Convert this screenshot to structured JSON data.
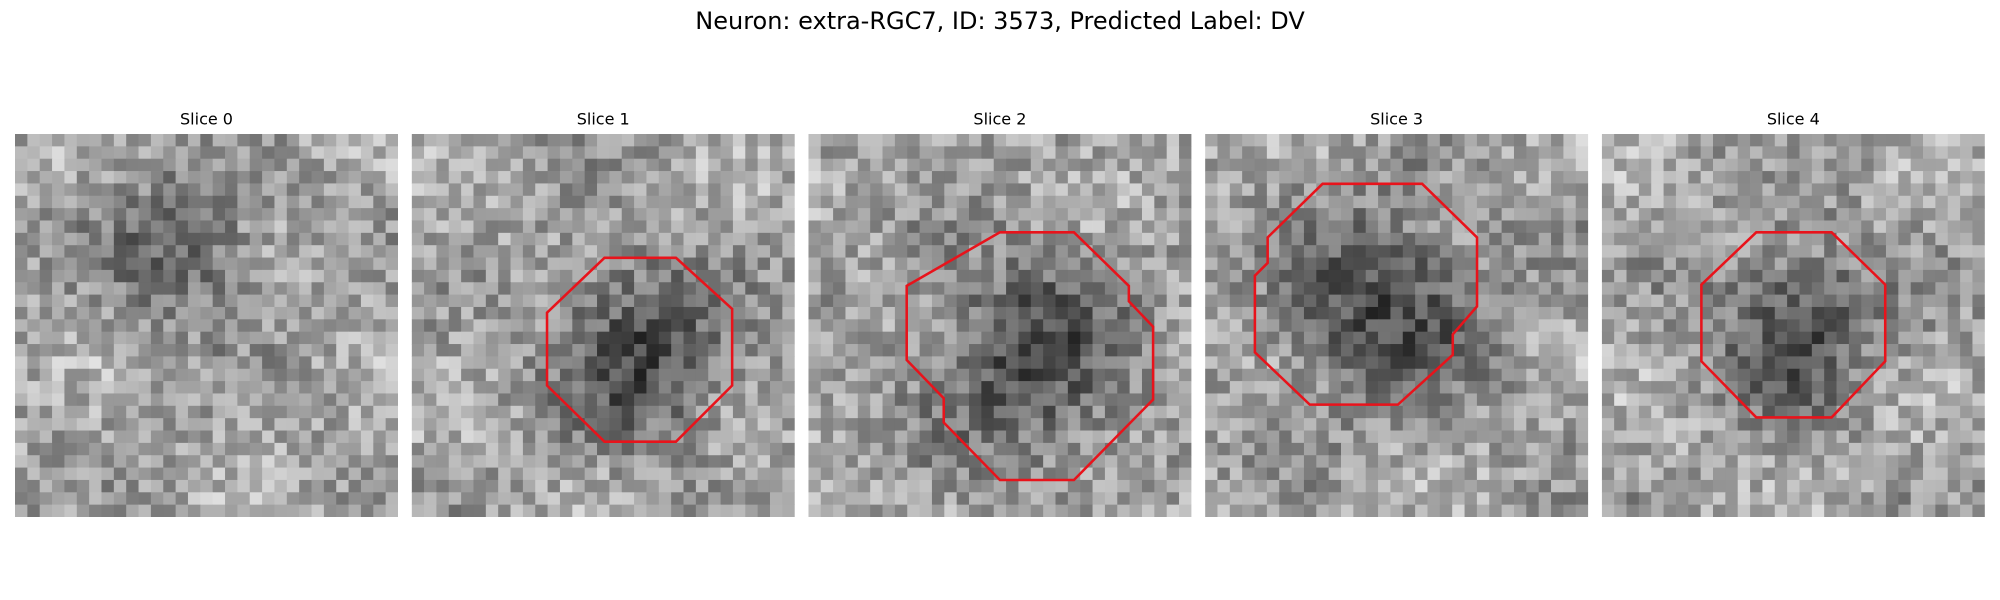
{
  "title": "Neuron: extra-RGC7, ID: 3573, Predicted Label: DV",
  "panels": [
    {
      "title": "Slice 0"
    },
    {
      "title": "Slice 1"
    },
    {
      "title": "Slice 2"
    },
    {
      "title": "Slice 3"
    },
    {
      "title": "Slice 4"
    }
  ]
}
